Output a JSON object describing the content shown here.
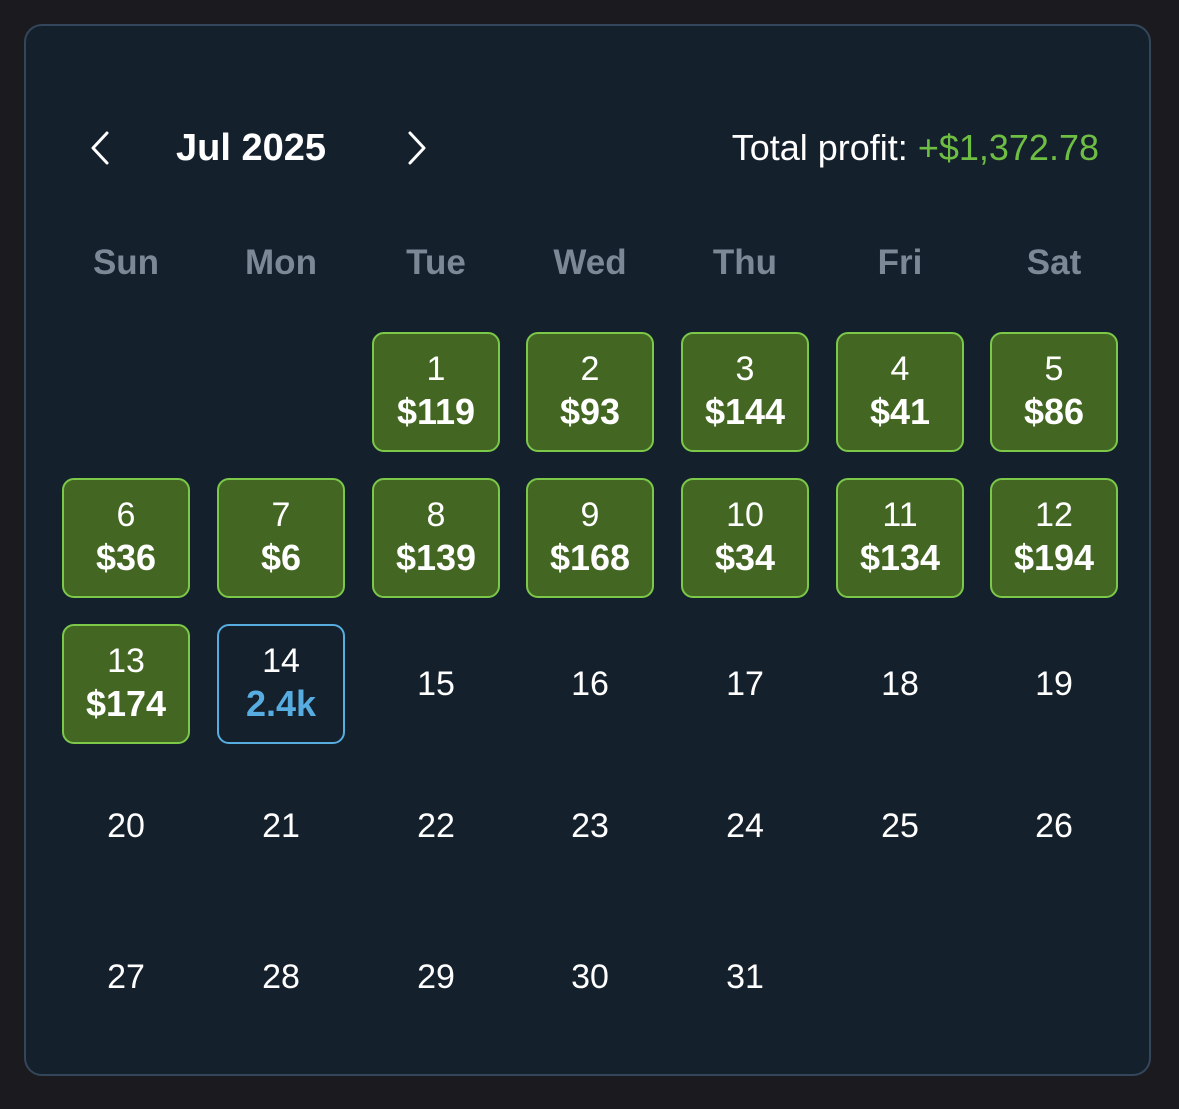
{
  "header": {
    "month_label": "Jul 2025",
    "total_profit_label": "Total profit:",
    "total_profit_value": "+$1,372.78",
    "prev_icon": "chevron-left-icon",
    "next_icon": "chevron-right-icon"
  },
  "weekdays": [
    "Sun",
    "Mon",
    "Tue",
    "Wed",
    "Thu",
    "Fri",
    "Sat"
  ],
  "colors": {
    "profit_fill": "#436722",
    "profit_border": "#7cc94a",
    "profit_text": "#6fbe44",
    "today_border": "#57ade0",
    "panel_bg": "#15202d"
  },
  "days": [
    {
      "day": "1",
      "value": "$119",
      "state": "profit"
    },
    {
      "day": "2",
      "value": "$93",
      "state": "profit"
    },
    {
      "day": "3",
      "value": "$144",
      "state": "profit"
    },
    {
      "day": "4",
      "value": "$41",
      "state": "profit"
    },
    {
      "day": "5",
      "value": "$86",
      "state": "profit"
    },
    {
      "day": "6",
      "value": "$36",
      "state": "profit"
    },
    {
      "day": "7",
      "value": "$6",
      "state": "profit"
    },
    {
      "day": "8",
      "value": "$139",
      "state": "profit"
    },
    {
      "day": "9",
      "value": "$168",
      "state": "profit"
    },
    {
      "day": "10",
      "value": "$34",
      "state": "profit"
    },
    {
      "day": "11",
      "value": "$134",
      "state": "profit"
    },
    {
      "day": "12",
      "value": "$194",
      "state": "profit"
    },
    {
      "day": "13",
      "value": "$174",
      "state": "profit"
    },
    {
      "day": "14",
      "value": "2.4k",
      "state": "today"
    },
    {
      "day": "15",
      "value": "",
      "state": "empty"
    },
    {
      "day": "16",
      "value": "",
      "state": "empty"
    },
    {
      "day": "17",
      "value": "",
      "state": "empty"
    },
    {
      "day": "18",
      "value": "",
      "state": "empty"
    },
    {
      "day": "19",
      "value": "",
      "state": "empty"
    },
    {
      "day": "20",
      "value": "",
      "state": "empty"
    },
    {
      "day": "21",
      "value": "",
      "state": "empty"
    },
    {
      "day": "22",
      "value": "",
      "state": "empty"
    },
    {
      "day": "23",
      "value": "",
      "state": "empty"
    },
    {
      "day": "24",
      "value": "",
      "state": "empty"
    },
    {
      "day": "25",
      "value": "",
      "state": "empty"
    },
    {
      "day": "26",
      "value": "",
      "state": "empty"
    },
    {
      "day": "27",
      "value": "",
      "state": "empty"
    },
    {
      "day": "28",
      "value": "",
      "state": "empty"
    },
    {
      "day": "29",
      "value": "",
      "state": "empty"
    },
    {
      "day": "30",
      "value": "",
      "state": "empty"
    },
    {
      "day": "31",
      "value": "",
      "state": "empty"
    }
  ]
}
